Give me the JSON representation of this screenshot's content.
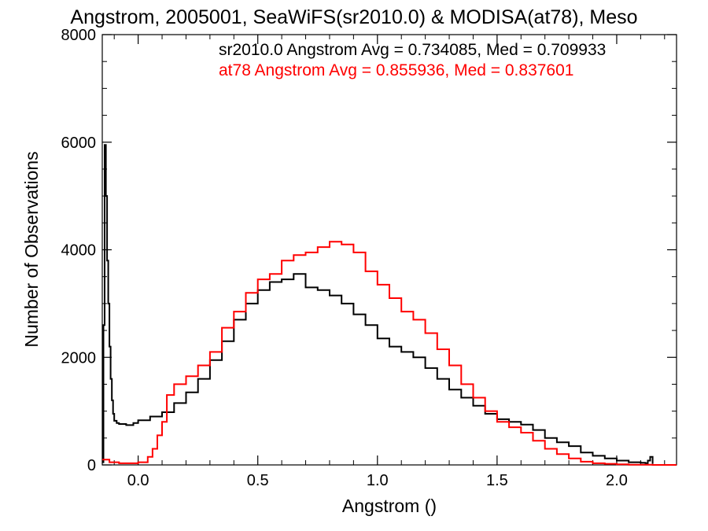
{
  "chart_data": {
    "type": "line",
    "title": "Angstrom, 2005001, SeaWiFS(sr2010.0) & MODISA(at78), Meso",
    "xlabel": "Angstrom ()",
    "ylabel": "Number of Observations",
    "xlim": [
      -0.15,
      2.25
    ],
    "ylim": [
      0,
      8000
    ],
    "x_ticks": [
      "0.0",
      "0.5",
      "1.0",
      "1.5",
      "2.0"
    ],
    "x_tick_values": [
      0.0,
      0.5,
      1.0,
      1.5,
      2.0
    ],
    "y_ticks": [
      "0",
      "2000",
      "4000",
      "6000",
      "8000"
    ],
    "y_tick_values": [
      0,
      2000,
      4000,
      6000,
      8000
    ],
    "grid": false,
    "step_style": "histogram",
    "annotations": [
      {
        "text": "sr2010.0 Angstrom Avg = 0.734085, Med = 0.709933",
        "color": "#000000"
      },
      {
        "text": "at78 Angstrom Avg = 0.855936, Med = 0.837601",
        "color": "#ff0000"
      }
    ],
    "series": [
      {
        "color": "#000000",
        "x": [
          -0.15,
          -0.145,
          -0.14,
          -0.135,
          -0.13,
          -0.125,
          -0.12,
          -0.115,
          -0.11,
          -0.105,
          -0.1,
          -0.09,
          -0.08,
          -0.05,
          -0.02,
          0.0,
          0.05,
          0.1,
          0.15,
          0.2,
          0.25,
          0.3,
          0.35,
          0.4,
          0.45,
          0.5,
          0.55,
          0.6,
          0.65,
          0.7,
          0.75,
          0.8,
          0.85,
          0.9,
          0.95,
          1.0,
          1.05,
          1.1,
          1.15,
          1.2,
          1.25,
          1.3,
          1.35,
          1.4,
          1.45,
          1.5,
          1.55,
          1.6,
          1.65,
          1.7,
          1.75,
          1.8,
          1.85,
          1.9,
          1.95,
          2.0,
          2.05,
          2.1,
          2.12,
          2.13,
          2.14,
          2.15
        ],
        "y": [
          50,
          2600,
          5950,
          5000,
          3800,
          3000,
          2200,
          1600,
          1200,
          950,
          820,
          780,
          760,
          740,
          780,
          830,
          900,
          980,
          1150,
          1350,
          1600,
          1950,
          2300,
          2700,
          3000,
          3250,
          3400,
          3450,
          3550,
          3300,
          3250,
          3150,
          3000,
          2800,
          2600,
          2350,
          2200,
          2100,
          2000,
          1800,
          1600,
          1400,
          1250,
          1100,
          950,
          850,
          800,
          750,
          650,
          500,
          420,
          350,
          230,
          170,
          120,
          80,
          50,
          40,
          30,
          80,
          150,
          20
        ]
      },
      {
        "color": "#ff0000",
        "x": [
          -0.15,
          -0.12,
          -0.08,
          -0.04,
          0.0,
          0.04,
          0.06,
          0.08,
          0.1,
          0.12,
          0.15,
          0.2,
          0.25,
          0.3,
          0.35,
          0.4,
          0.45,
          0.5,
          0.55,
          0.6,
          0.65,
          0.7,
          0.75,
          0.8,
          0.85,
          0.9,
          0.95,
          1.0,
          1.05,
          1.1,
          1.15,
          1.2,
          1.25,
          1.3,
          1.35,
          1.4,
          1.45,
          1.5,
          1.55,
          1.6,
          1.65,
          1.7,
          1.75,
          1.8,
          1.85,
          1.9,
          1.95,
          2.0,
          2.05,
          2.1,
          2.15,
          2.2,
          2.25
        ],
        "y": [
          100,
          50,
          30,
          30,
          50,
          150,
          300,
          550,
          800,
          1300,
          1500,
          1650,
          1850,
          2100,
          2550,
          2850,
          3200,
          3450,
          3550,
          3800,
          3900,
          3950,
          4050,
          4150,
          4100,
          3950,
          3600,
          3350,
          3100,
          2850,
          2700,
          2450,
          2150,
          1850,
          1500,
          1250,
          1000,
          800,
          700,
          600,
          450,
          300,
          200,
          120,
          60,
          30,
          20,
          10,
          5,
          5,
          0,
          0,
          0
        ]
      }
    ]
  }
}
